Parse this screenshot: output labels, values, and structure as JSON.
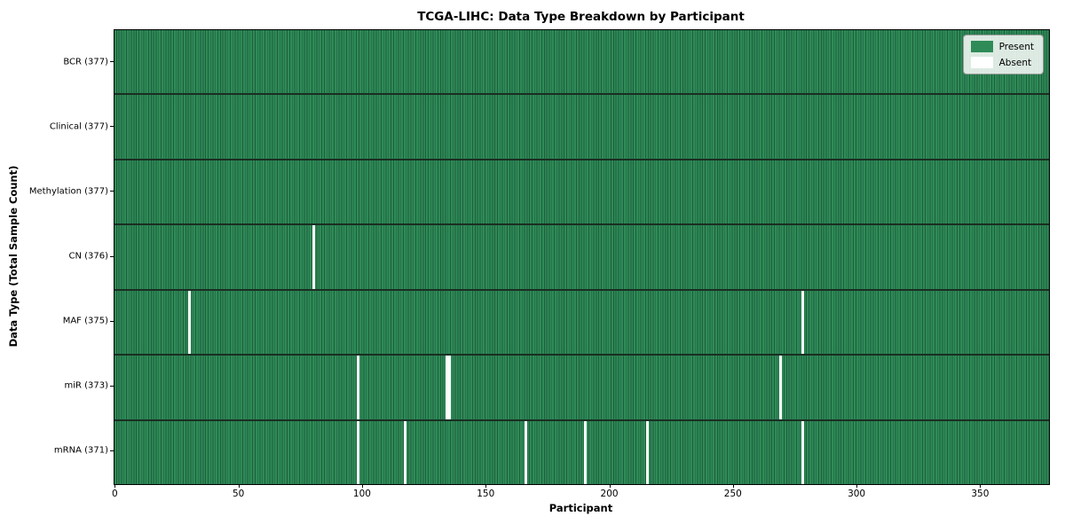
{
  "chart_data": {
    "type": "heatmap",
    "title": "TCGA-LIHC: Data Type Breakdown by Participant",
    "xlabel": "Participant",
    "ylabel": "Data Type (Total Sample Count)",
    "x_ticks": [
      0,
      50,
      100,
      150,
      200,
      250,
      300,
      350
    ],
    "x_range": [
      -0.5,
      377.5
    ],
    "total_participants": 377,
    "rows": [
      {
        "data_type": "BCR",
        "label": "BCR (377)",
        "present_count": 377,
        "absent_participants": []
      },
      {
        "data_type": "Clinical",
        "label": "Clinical (377)",
        "present_count": 377,
        "absent_participants": []
      },
      {
        "data_type": "Methylation",
        "label": "Methylation (377)",
        "present_count": 377,
        "absent_participants": []
      },
      {
        "data_type": "CN",
        "label": "CN (376)",
        "present_count": 376,
        "absent_participants": [
          80
        ]
      },
      {
        "data_type": "MAF",
        "label": "MAF (375)",
        "present_count": 375,
        "absent_participants": [
          30,
          278
        ]
      },
      {
        "data_type": "miR",
        "label": "miR (373)",
        "present_count": 373,
        "absent_participants": [
          98,
          134,
          135,
          269
        ]
      },
      {
        "data_type": "mRNA",
        "label": "mRNA (371)",
        "present_count": 371,
        "absent_participants": [
          98,
          117,
          166,
          190,
          215,
          278
        ]
      }
    ],
    "legend": {
      "position": "upper right",
      "items": [
        {
          "label": "Present",
          "color": "#2e8b57"
        },
        {
          "label": "Absent",
          "color": "#ffffff"
        }
      ]
    },
    "colors": {
      "present": "#2e8b57",
      "cell_edge": "#1e5e3c",
      "row_divider": "#1a2e22",
      "absent": "#ffffff",
      "axis": "#000000"
    },
    "grid": "off"
  }
}
